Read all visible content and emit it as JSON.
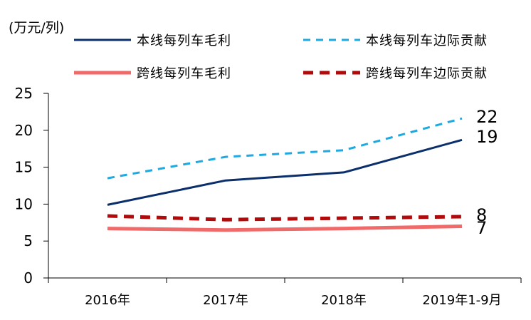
{
  "chart_data": {
    "type": "line",
    "unit_label": "(万元/列)",
    "categories": [
      "2016年",
      "2017年",
      "2018年",
      "2019年1-9月"
    ],
    "ylim": [
      0,
      25
    ],
    "yticks": [
      "0",
      "5",
      "10",
      "15",
      "20",
      "25"
    ],
    "series": [
      {
        "name": "本线每列车毛利",
        "values": [
          9.9,
          13.2,
          14.3,
          18.7
        ],
        "color": "#0a2f6b",
        "style": "solid",
        "end_label": "19"
      },
      {
        "name": "本线每列车边际贡献",
        "values": [
          13.5,
          16.4,
          17.3,
          21.6
        ],
        "color": "#1ea9e1",
        "style": "dashed",
        "end_label": "22"
      },
      {
        "name": "跨线每列车毛利",
        "values": [
          6.7,
          6.5,
          6.7,
          7.0
        ],
        "color": "#f06a6a",
        "style": "solid-thick",
        "end_label": "7"
      },
      {
        "name": "跨线每列车边际贡献",
        "values": [
          8.4,
          7.9,
          8.1,
          8.3
        ],
        "color": "#b00a0a",
        "style": "dashed-thick",
        "end_label": "8"
      }
    ]
  }
}
